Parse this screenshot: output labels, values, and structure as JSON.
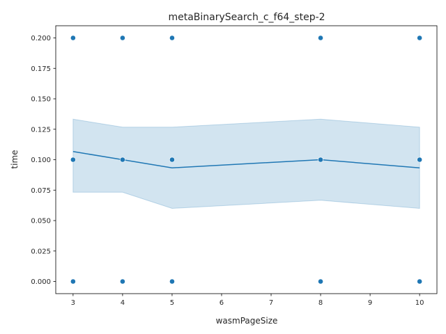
{
  "chart_data": {
    "type": "line",
    "title": "metaBinarySearch_c_f64_step-2",
    "xlabel": "wasmPageSize",
    "ylabel": "time",
    "xlim": [
      2.65,
      10.35
    ],
    "ylim": [
      -0.01,
      0.21
    ],
    "xticks": [
      3,
      4,
      5,
      6,
      7,
      8,
      9,
      10
    ],
    "yticks": [
      0.0,
      0.025,
      0.05,
      0.075,
      0.1,
      0.125,
      0.15,
      0.175,
      0.2
    ],
    "ytick_labels": [
      "0.000",
      "0.025",
      "0.050",
      "0.075",
      "0.100",
      "0.125",
      "0.150",
      "0.175",
      "0.200"
    ],
    "grid": false,
    "series": [
      {
        "kind": "mean-line",
        "x": [
          3,
          4,
          5,
          8,
          10
        ],
        "y": [
          0.1067,
          0.1,
          0.0933,
          0.1,
          0.0933
        ],
        "color": "#1f77b4"
      },
      {
        "kind": "confidence-band",
        "x": [
          3,
          4,
          5,
          8,
          10
        ],
        "lower": [
          0.0733,
          0.0733,
          0.06,
          0.0667,
          0.06
        ],
        "upper": [
          0.1333,
          0.1267,
          0.1267,
          0.1333,
          0.1267
        ],
        "color": "#1f77b4"
      },
      {
        "kind": "scatter",
        "x": [
          3,
          3,
          3,
          4,
          4,
          4,
          5,
          5,
          5,
          8,
          8,
          8,
          10,
          10,
          10
        ],
        "y": [
          0.2,
          0.1,
          0.0,
          0.2,
          0.1,
          0.0,
          0.2,
          0.1,
          0.0,
          0.2,
          0.1,
          0.0,
          0.2,
          0.1,
          0.0
        ],
        "color": "#1f77b4"
      }
    ]
  }
}
